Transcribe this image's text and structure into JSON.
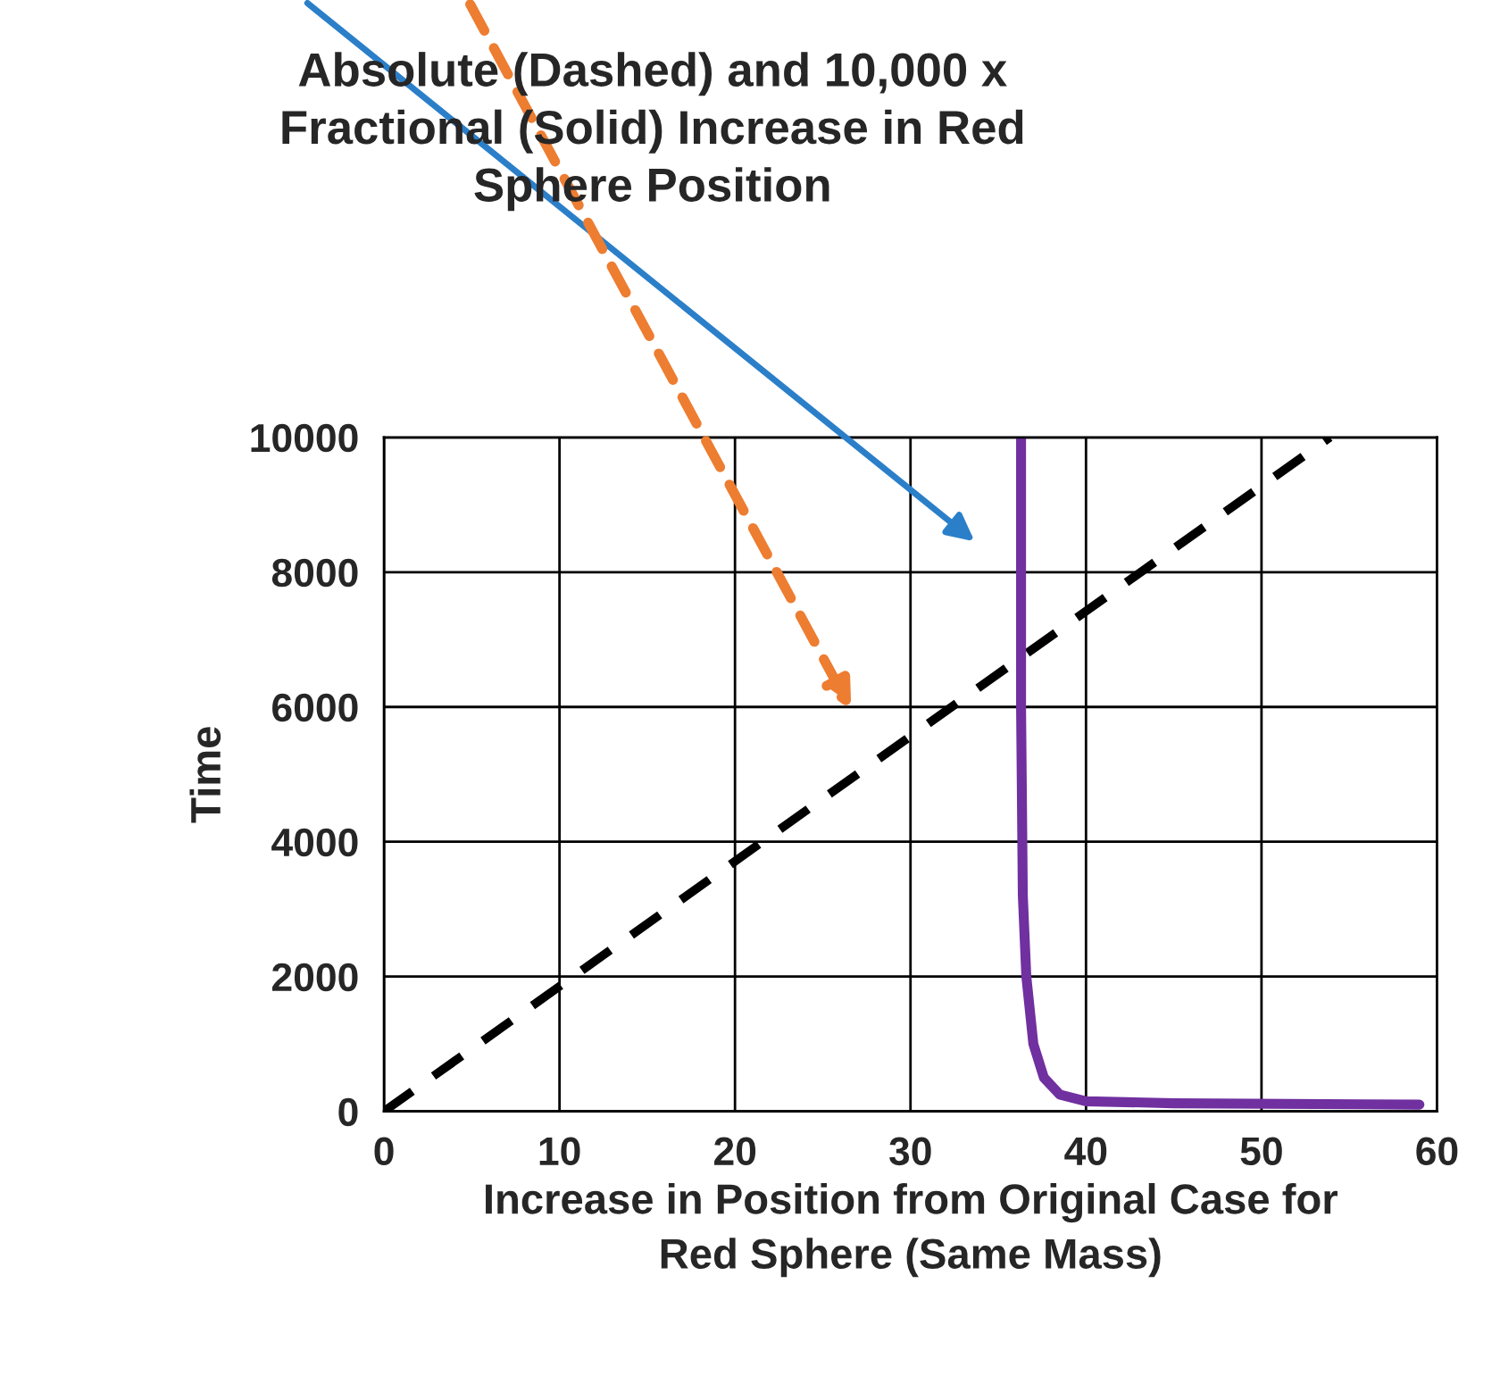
{
  "chart_data": {
    "type": "line",
    "title": "Absolute (Dashed) and 10,000 x\nFractional (Solid) Increase in Red\nSphere Position",
    "xlabel": "Increase in Position from Original Case for\nRed Sphere (Same Mass)",
    "ylabel": "Time",
    "series": [
      {
        "color": "#000000",
        "line_style": "dashed",
        "x": [
          0,
          53.9
        ],
        "values": [
          0,
          10000
        ]
      },
      {
        "color": "#7030a0",
        "line_style": "solid",
        "x": [
          36.3,
          36.3,
          36.4,
          36.6,
          37.0,
          37.6,
          38.5,
          40.0,
          45.0,
          59.0
        ],
        "values": [
          10000,
          6000,
          3200,
          2000,
          1000,
          500,
          250,
          150,
          120,
          100
        ]
      }
    ],
    "xlim": [
      0,
      60
    ],
    "xticks": [
      0,
      10,
      20,
      30,
      40,
      50,
      60
    ],
    "ylim": [
      0,
      10000
    ],
    "yticks": [
      0,
      2000,
      4000,
      6000,
      8000,
      10000
    ],
    "grid": true,
    "legend": false,
    "marker": "none"
  }
}
